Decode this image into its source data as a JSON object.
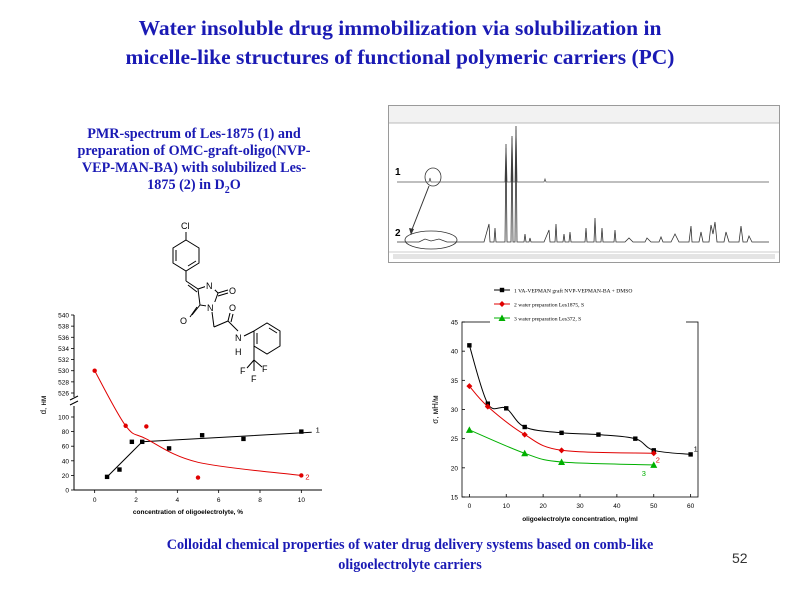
{
  "title": {
    "line1": "Water insoluble drug immobilization via solubilization in",
    "line2": "micelle-like structures of functional polymeric carriers (PC)"
  },
  "pmr_caption": {
    "line1": "PMR-spectrum  of Les-1875 (1) and",
    "line2": "preparation  of OMC-graft-oligo(NVP-",
    "line3": "VEP-MAN-BA)  with solubilized   Les-",
    "line4_main": "1875 (2) in D",
    "line4_sub": "2",
    "line4_end": "O"
  },
  "spectrum": {
    "trace_labels": [
      "1",
      "2"
    ]
  },
  "molecule": {
    "atom_labels": [
      "Cl",
      "N",
      "O",
      "O",
      "N",
      "O",
      "N",
      "H",
      "F",
      "F",
      "F"
    ]
  },
  "chart_data": [
    {
      "type": "scatter",
      "title": "",
      "xlabel": "concentration of oligoelectrolyte, %",
      "ylabel": "d, нм",
      "xlim": [
        -1,
        11
      ],
      "x_ticks": [
        0,
        2,
        4,
        6,
        8,
        10
      ],
      "y_ticks_upper": [
        526,
        528,
        530,
        532,
        534,
        536,
        538,
        540
      ],
      "y_ticks_lower": [
        0,
        20,
        40,
        60,
        80,
        100
      ],
      "axis_break": true,
      "legend": "none",
      "colors": {
        "series1": "#000000",
        "series2": "#e00000"
      },
      "series": [
        {
          "name": "1",
          "x": [
            0.6,
            1.2,
            1.8,
            2.3,
            3.6,
            5.2,
            7.2,
            10
          ],
          "y": [
            18,
            28,
            66,
            66,
            57,
            75,
            70,
            80
          ],
          "fit_x": [
            0.6,
            2.3,
            10.5
          ],
          "fit_y": [
            18,
            66,
            79
          ]
        },
        {
          "name": "2",
          "x": [
            0,
            1.5,
            2.5,
            5,
            10
          ],
          "y": [
            530,
            88,
            87,
            17,
            20
          ],
          "fit_x": [
            0,
            1.5,
            2.5,
            5,
            10
          ],
          "fit_y": [
            530,
            88,
            70,
            38,
            20
          ]
        }
      ]
    },
    {
      "type": "line",
      "title": "",
      "xlabel": "oligoelectrolyte concentration, mg/ml",
      "ylabel": "σ, мН/м",
      "xlim": [
        -2,
        62
      ],
      "ylim": [
        15,
        45
      ],
      "x_ticks": [
        0,
        10,
        20,
        30,
        40,
        50,
        60
      ],
      "y_ticks": [
        15,
        20,
        25,
        30,
        35,
        40,
        45
      ],
      "legend": "top-left",
      "legend_entries": [
        "1 VA-VEPMAN graft NVP-VEPMAN-BA + DMSO",
        "2 water preparation Les1875, S",
        "3 water preparation Les372, S"
      ],
      "colors": {
        "series1": "#000000",
        "series2": "#e00000",
        "series3": "#00b000"
      },
      "series": [
        {
          "name": "1",
          "x": [
            0,
            5,
            10,
            15,
            25,
            35,
            45,
            50,
            60
          ],
          "y": [
            41,
            31,
            30.2,
            27,
            26,
            25.7,
            25,
            23,
            22.3
          ]
        },
        {
          "name": "2",
          "x": [
            0,
            5,
            15,
            25,
            50
          ],
          "y": [
            34,
            30.5,
            25.7,
            23,
            22.5
          ]
        },
        {
          "name": "3",
          "x": [
            0,
            15,
            25,
            50
          ],
          "y": [
            26.5,
            22.5,
            21,
            20.5
          ]
        }
      ]
    }
  ],
  "bottom_caption": {
    "line1": "Colloidal  chemical properties of water drug  delivery systems based on comb-like",
    "line2": "oligoelectrolyte carriers"
  },
  "page_number": "52"
}
